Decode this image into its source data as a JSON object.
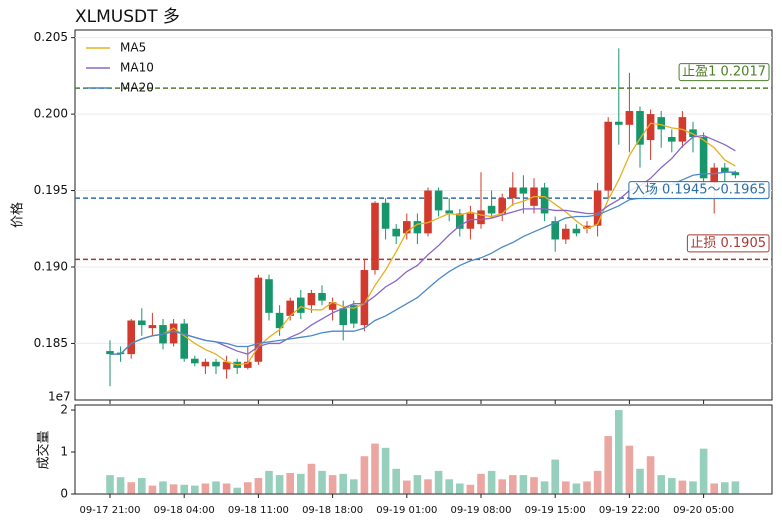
{
  "chart_data": [
    {
      "type": "candlestick",
      "title": "XLMUSDT  多",
      "ylabel": "价格",
      "categories": [
        "09-17 21:00",
        null,
        null,
        null,
        null,
        null,
        null,
        "09-18 04:00",
        null,
        null,
        null,
        null,
        null,
        null,
        "09-18 11:00",
        null,
        null,
        null,
        null,
        null,
        null,
        "09-18 18:00",
        null,
        null,
        null,
        null,
        null,
        null,
        "09-19 01:00",
        null,
        null,
        null,
        null,
        null,
        null,
        "09-19 08:00",
        null,
        null,
        null,
        null,
        null,
        null,
        "09-19 15:00",
        null,
        null,
        null,
        null,
        null,
        null,
        "09-19 22:00",
        null,
        null,
        null,
        null,
        null,
        null,
        "09-20 05:00",
        null,
        null,
        null
      ],
      "open": [
        0.1845,
        0.1844,
        0.1843,
        0.1865,
        0.186,
        0.1862,
        0.185,
        0.1863,
        0.184,
        0.1835,
        0.1838,
        0.1833,
        0.1838,
        0.1834,
        0.1838,
        0.1892,
        0.187,
        0.1868,
        0.188,
        0.1875,
        0.1883,
        0.1872,
        0.1873,
        0.1875,
        0.1862,
        0.1898,
        0.1942,
        0.1925,
        0.1922,
        0.193,
        0.1922,
        0.195,
        0.1937,
        0.1935,
        0.1925,
        0.1928,
        0.194,
        0.1935,
        0.1945,
        0.1952,
        0.194,
        0.1952,
        0.193,
        0.1918,
        0.1925,
        0.1925,
        0.1927,
        0.195,
        0.1995,
        0.1993,
        0.2002,
        0.1983,
        0.1998,
        0.1985,
        0.1982,
        0.199,
        0.1985,
        0.1955,
        0.1965,
        0.1962
      ],
      "high": [
        0.1852,
        0.1848,
        0.1866,
        0.1873,
        0.187,
        0.1866,
        0.1866,
        0.1866,
        0.1842,
        0.184,
        0.184,
        0.1842,
        0.184,
        0.1848,
        0.1895,
        0.1895,
        0.1875,
        0.188,
        0.1885,
        0.1885,
        0.1888,
        0.188,
        0.1878,
        0.1878,
        0.1905,
        0.1943,
        0.1945,
        0.1928,
        0.1935,
        0.1935,
        0.1952,
        0.1952,
        0.1945,
        0.1938,
        0.194,
        0.1962,
        0.195,
        0.1948,
        0.1962,
        0.196,
        0.1958,
        0.1955,
        0.1933,
        0.1928,
        0.1928,
        0.193,
        0.1955,
        0.1998,
        0.2043,
        0.2027,
        0.2005,
        0.2003,
        0.2002,
        0.199,
        0.2002,
        0.1995,
        0.1988,
        0.1968,
        0.1968,
        0.1963
      ],
      "low": [
        0.1822,
        0.1838,
        0.184,
        0.1855,
        0.1855,
        0.1846,
        0.1848,
        0.1838,
        0.1835,
        0.183,
        0.183,
        0.1827,
        0.183,
        0.1833,
        0.1836,
        0.1865,
        0.1855,
        0.1865,
        0.1866,
        0.187,
        0.1875,
        0.1865,
        0.1852,
        0.186,
        0.1858,
        0.1895,
        0.1918,
        0.1915,
        0.1918,
        0.1915,
        0.192,
        0.1933,
        0.193,
        0.192,
        0.1918,
        0.1925,
        0.1932,
        0.193,
        0.194,
        0.1935,
        0.1935,
        0.193,
        0.191,
        0.1915,
        0.192,
        0.1922,
        0.192,
        0.1945,
        0.198,
        0.1975,
        0.1965,
        0.197,
        0.1978,
        0.1975,
        0.1978,
        0.1975,
        0.195,
        0.1935,
        0.1955,
        0.1958
      ],
      "close": [
        0.1843,
        0.1843,
        0.1865,
        0.1862,
        0.1862,
        0.185,
        0.1863,
        0.184,
        0.1837,
        0.1838,
        0.1835,
        0.1838,
        0.1834,
        0.1838,
        0.1893,
        0.187,
        0.186,
        0.1878,
        0.187,
        0.1883,
        0.1878,
        0.1877,
        0.1862,
        0.1863,
        0.1898,
        0.1942,
        0.1925,
        0.192,
        0.193,
        0.1922,
        0.195,
        0.1937,
        0.1935,
        0.1925,
        0.1935,
        0.1937,
        0.1935,
        0.1945,
        0.1952,
        0.1948,
        0.1952,
        0.1935,
        0.1918,
        0.1925,
        0.1922,
        0.1927,
        0.195,
        0.1995,
        0.1993,
        0.2002,
        0.198,
        0.2,
        0.199,
        0.1982,
        0.1998,
        0.1985,
        0.1958,
        0.1965,
        0.1962,
        0.196
      ],
      "up_color": "#d23a2e",
      "down_color": "#16966a",
      "series": [
        {
          "name": "MA5",
          "color": "#e6b020",
          "values": [
            0.1843,
            0.1843,
            0.185,
            0.1853,
            0.1855,
            0.1856,
            0.186,
            0.1855,
            0.185,
            0.1846,
            0.1843,
            0.1838,
            0.1836,
            0.1837,
            0.1848,
            0.1854,
            0.1859,
            0.1868,
            0.1874,
            0.1872,
            0.1872,
            0.1877,
            0.1874,
            0.1873,
            0.1876,
            0.1888,
            0.1898,
            0.191,
            0.1923,
            0.1928,
            0.1929,
            0.1932,
            0.1935,
            0.1934,
            0.1936,
            0.1934,
            0.1933,
            0.1935,
            0.1941,
            0.1943,
            0.1946,
            0.1946,
            0.1941,
            0.1936,
            0.193,
            0.1925,
            0.1928,
            0.1944,
            0.1957,
            0.1973,
            0.1984,
            0.1994,
            0.1993,
            0.1991,
            0.199,
            0.1987,
            0.1983,
            0.1978,
            0.197,
            0.1966
          ]
        },
        {
          "name": "MA10",
          "color": "#8a66c8",
          "values": [
            0.1843,
            0.1843,
            0.185,
            0.1853,
            0.1855,
            0.1856,
            0.1858,
            0.1856,
            0.1854,
            0.1852,
            0.1851,
            0.1848,
            0.1845,
            0.1843,
            0.1848,
            0.185,
            0.185,
            0.1854,
            0.1857,
            0.1862,
            0.1866,
            0.187,
            0.1873,
            0.1876,
            0.1876,
            0.1881,
            0.1887,
            0.1891,
            0.1897,
            0.1901,
            0.1908,
            0.1914,
            0.1921,
            0.1927,
            0.1931,
            0.1931,
            0.1932,
            0.1934,
            0.1936,
            0.1938,
            0.1938,
            0.1938,
            0.1937,
            0.1937,
            0.1936,
            0.1935,
            0.1935,
            0.194,
            0.1944,
            0.195,
            0.1953,
            0.1958,
            0.1965,
            0.1971,
            0.1979,
            0.1985,
            0.1986,
            0.1983,
            0.198,
            0.1976
          ]
        },
        {
          "name": "MA20",
          "color": "#4a8ac8",
          "values": [
            0.1843,
            0.1843,
            0.185,
            0.1853,
            0.1855,
            0.1856,
            0.1858,
            0.1856,
            0.1854,
            0.1852,
            0.1851,
            0.185,
            0.1848,
            0.1848,
            0.185,
            0.1851,
            0.1852,
            0.1853,
            0.1854,
            0.1855,
            0.1857,
            0.1858,
            0.1858,
            0.1858,
            0.186,
            0.1865,
            0.1868,
            0.1872,
            0.1876,
            0.188,
            0.1886,
            0.1892,
            0.1897,
            0.1901,
            0.1904,
            0.1906,
            0.1909,
            0.1913,
            0.1916,
            0.192,
            0.1923,
            0.1926,
            0.1929,
            0.1932,
            0.1933,
            0.1933,
            0.1934,
            0.1937,
            0.194,
            0.1944,
            0.1945,
            0.1948,
            0.1951,
            0.1954,
            0.1957,
            0.196,
            0.1961,
            0.1961,
            0.1962,
            0.1962
          ]
        }
      ],
      "levels": [
        {
          "label": "止盈1 0.2017",
          "value": 0.2017,
          "color": "#4e7d2a"
        },
        {
          "label": "入场 0.1945～0.1965",
          "value": 0.1945,
          "color": "#2a6ea8"
        },
        {
          "label": "止损 0.1905",
          "value": 0.1905,
          "color": "#a83a34"
        }
      ],
      "ylim": [
        0.1813,
        0.2055
      ],
      "yticks": [
        0.185,
        {
          "value": 0.19,
          "label": "0.190"
        },
        0.195,
        {
          "value": 0.2,
          "label": "0.200"
        },
        0.205
      ],
      "grid": true,
      "legend": "upper left"
    },
    {
      "type": "bar",
      "ylabel": "成交量",
      "offset_label": "1e7",
      "values": [
        0.45,
        0.4,
        0.28,
        0.38,
        0.2,
        0.3,
        0.23,
        0.22,
        0.2,
        0.25,
        0.3,
        0.25,
        0.15,
        0.28,
        0.38,
        0.55,
        0.45,
        0.5,
        0.48,
        0.72,
        0.55,
        0.45,
        0.48,
        0.35,
        0.9,
        1.2,
        1.1,
        0.6,
        0.32,
        0.45,
        0.35,
        0.55,
        0.35,
        0.25,
        0.22,
        0.48,
        0.55,
        0.35,
        0.45,
        0.45,
        0.4,
        0.3,
        0.82,
        0.3,
        0.25,
        0.3,
        0.55,
        1.38,
        2.0,
        1.15,
        0.6,
        0.9,
        0.45,
        0.38,
        0.32,
        0.3,
        1.08,
        0.25,
        0.28,
        0.3
      ],
      "ylim": [
        0,
        2.12
      ],
      "yticks": [
        0,
        1,
        2
      ]
    }
  ]
}
